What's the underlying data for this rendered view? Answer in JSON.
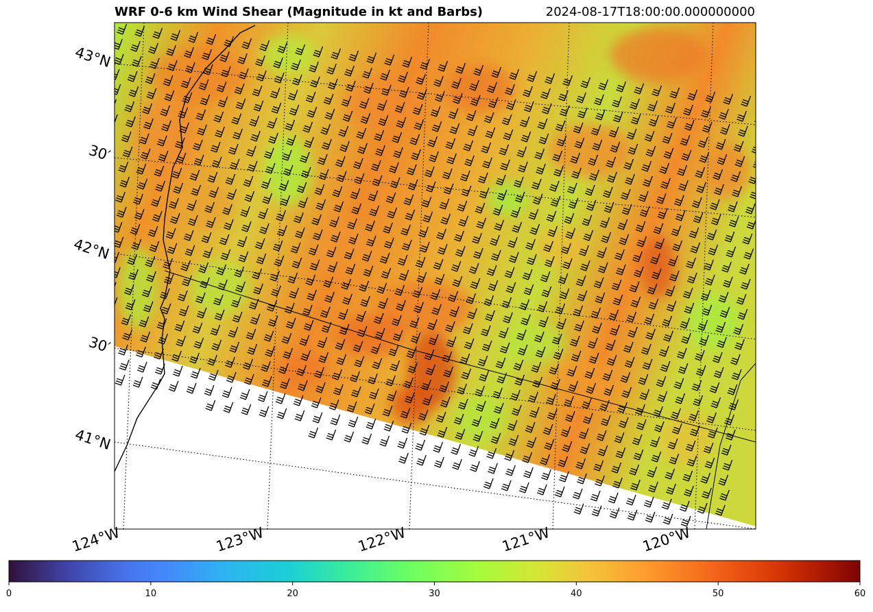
{
  "title": "WRF 0-6 km Wind Shear (Magnitude in kt and Barbs)",
  "timestamp": "2024-08-17T18:00:00.000000000",
  "lat_labels": [
    "43°N",
    "30′",
    "42°N",
    "30′",
    "41°N"
  ],
  "lon_labels": [
    "124°W",
    "123°W",
    "122°W",
    "121°W",
    "120°W"
  ],
  "colorbar": {
    "colormap": "turbo",
    "min": 0,
    "max": 60,
    "ticks": [
      "0",
      "10",
      "20",
      "30",
      "40",
      "50",
      "60"
    ]
  },
  "colors": {
    "field_low": "#a4f03a",
    "field_mid": "#e8c33a",
    "field_high": "#f07a22",
    "field_peak": "#d8450f"
  }
}
